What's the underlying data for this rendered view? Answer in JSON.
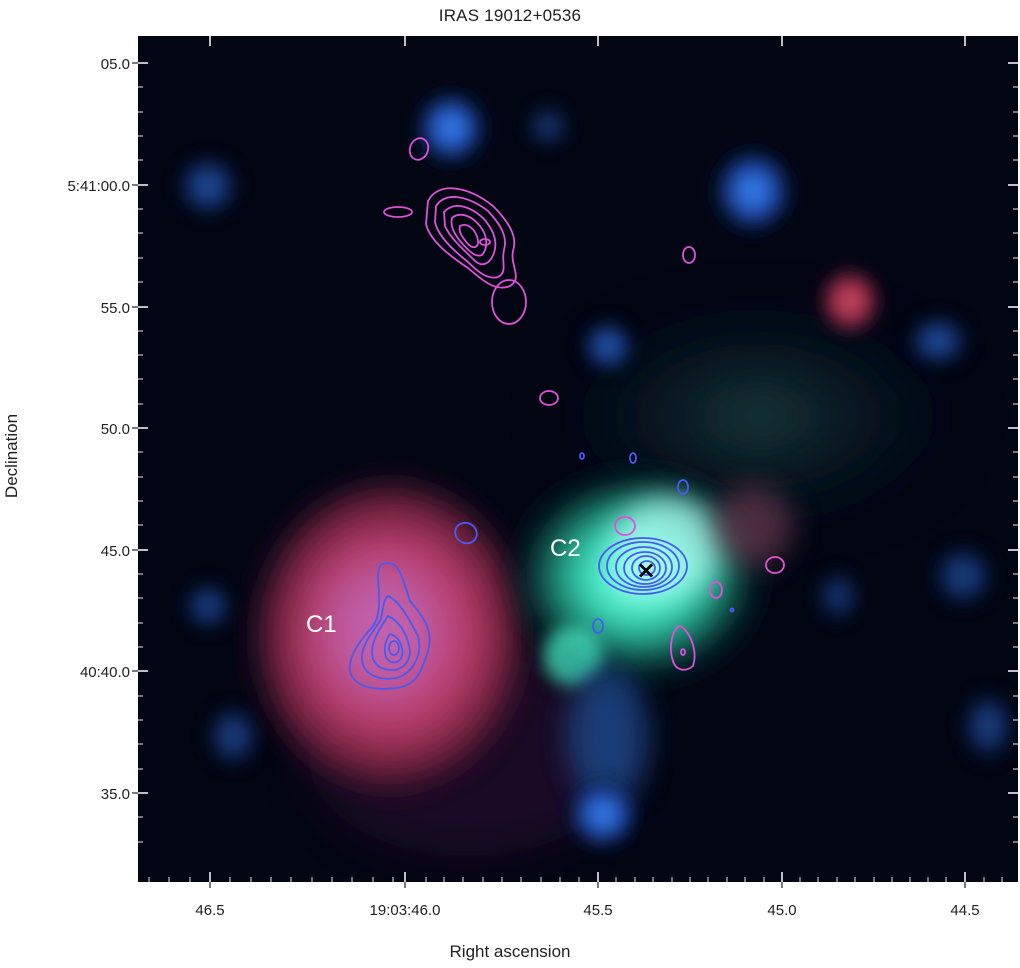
{
  "title": "IRAS 19012+0536",
  "axes": {
    "xlabel": "Right ascension",
    "ylabel": "Declination",
    "xticks": [
      "46.5",
      "19:03:46.0",
      "45.5",
      "45.0",
      "44.5"
    ],
    "yticks": [
      "05.0",
      "5:41:00.0",
      "55.0",
      "50.0",
      "45.0",
      "40:40.0",
      "35.0"
    ]
  },
  "sources": [
    {
      "label": "C1"
    },
    {
      "label": "C2"
    }
  ],
  "colors": {
    "background": "#020613",
    "red_channel": "#c0406a",
    "green_channel": "#30f0c0",
    "blue_channel": "#2a6cf0",
    "contour_magenta": "#e050d8",
    "contour_blue": "#4a5af0",
    "marker": "#000000",
    "source_label": "#ffffff"
  },
  "marker": {
    "symbol": "×"
  }
}
